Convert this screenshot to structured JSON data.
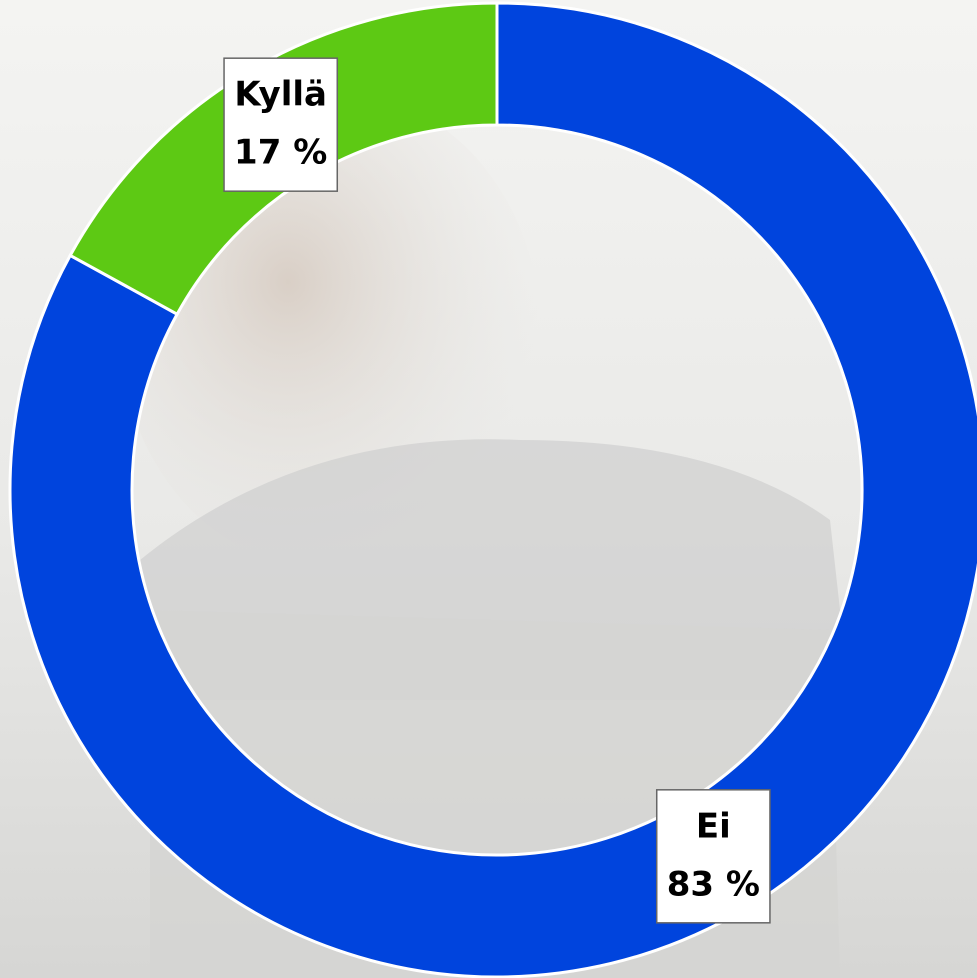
{
  "chart_data": {
    "type": "donut",
    "categories": [
      "Ei",
      "Kyllä"
    ],
    "values": [
      83,
      17
    ],
    "value_labels": [
      "83 %",
      "17 %"
    ],
    "colors": [
      "#0044dd",
      "#5dc914"
    ]
  }
}
